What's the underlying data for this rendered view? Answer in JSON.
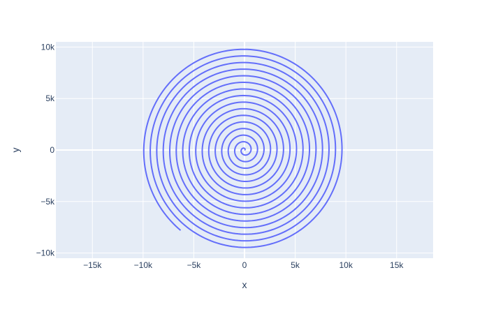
{
  "chart_data": {
    "type": "line",
    "title": "",
    "xlabel": "x",
    "ylabel": "y",
    "xlim": [
      -18600,
      18600
    ],
    "ylim": [
      -10500,
      10500
    ],
    "x_ticks": [
      {
        "value": -15000,
        "label": "−15k"
      },
      {
        "value": -10000,
        "label": "−10k"
      },
      {
        "value": -5000,
        "label": "−5k"
      },
      {
        "value": 0,
        "label": "0"
      },
      {
        "value": 5000,
        "label": "5k"
      },
      {
        "value": 10000,
        "label": "10k"
      },
      {
        "value": 15000,
        "label": "15k"
      }
    ],
    "y_ticks": [
      {
        "value": -10000,
        "label": "−10k"
      },
      {
        "value": -5000,
        "label": "−5k"
      },
      {
        "value": 0,
        "label": "0"
      },
      {
        "value": 5000,
        "label": "5k"
      },
      {
        "value": 10000,
        "label": "10k"
      }
    ],
    "grid": true,
    "series": [
      {
        "color": "#636efa",
        "shape": "archimedean spiral",
        "spacing_per_turn": 650,
        "turns": 15.35,
        "start": [
          0,
          0
        ],
        "end": [
          -6300,
          -7800
        ],
        "outer_extent": {
          "x": [
            -10000,
            9500
          ],
          "y": [
            -9400,
            9700
          ]
        }
      }
    ]
  },
  "colors": {
    "plot_background": "#e5ecf6",
    "grid": "#ffffff",
    "text": "#2a3f5f",
    "line": "#636efa"
  }
}
